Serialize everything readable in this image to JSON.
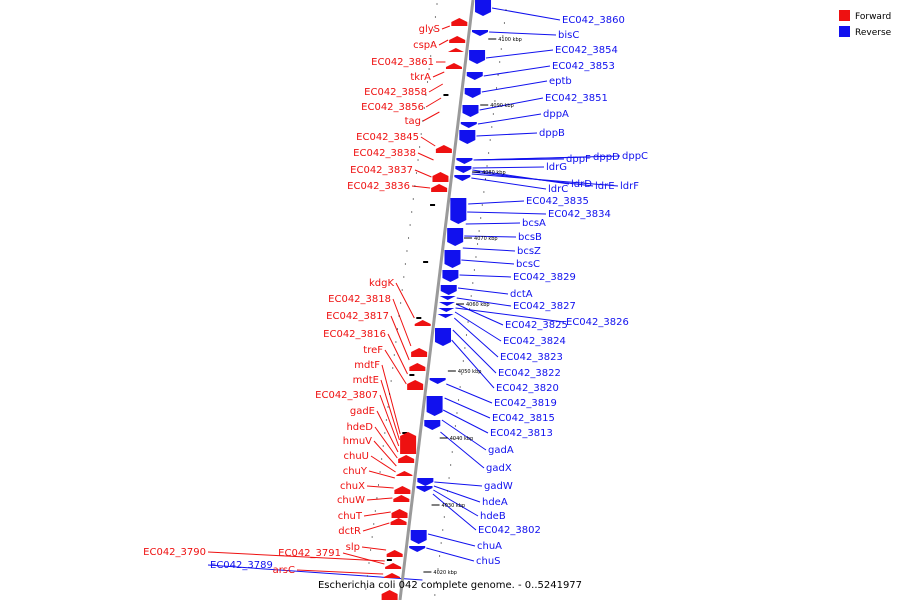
{
  "caption": "Escherichia coli 042 complete genome. - 0..5241977",
  "legend": {
    "forward": {
      "label": "Forward",
      "color": "#ee1111"
    },
    "reverse": {
      "label": "Reverse",
      "color": "#1111ee"
    }
  },
  "colors": {
    "forward": "#ee1111",
    "reverse": "#1111ee",
    "axis": "#9a9a9a"
  },
  "ticks": [
    "4100 kbp",
    "4090 kbp",
    "4080 kbp",
    "4070 kbp",
    "4060 kbp",
    "4050 kbp",
    "4040 kbp",
    "4030 kbp",
    "4020 kbp"
  ],
  "forward_genes": [
    "glyS",
    "cspA",
    "EC042_3861",
    "tkrA",
    "EC042_3858",
    "EC042_3856",
    "tag",
    "EC042_3845",
    "EC042_3838",
    "EC042_3837",
    "EC042_3836",
    "kdgK",
    "EC042_3818",
    "EC042_3817",
    "EC042_3816",
    "treF",
    "mdtF",
    "mdtE",
    "EC042_3807",
    "gadE",
    "hdeD",
    "hmuV",
    "chuU",
    "chuY",
    "chuX",
    "chuW",
    "chuT",
    "dctR",
    "slp",
    "EC042_3790",
    "EC042_3791",
    "arsC"
  ],
  "reverse_genes": [
    "EC042_3860",
    "bisC",
    "EC042_3854",
    "EC042_3853",
    "eptb",
    "EC042_3851",
    "dppA",
    "dppB",
    "dppF",
    "dppD",
    "dppC",
    "ldrG",
    "ldrD",
    "ldrE",
    "ldrF",
    "ldrC",
    "EC042_3835",
    "EC042_3834",
    "bcsA",
    "bcsB",
    "bcsZ",
    "bcsC",
    "EC042_3829",
    "dctA",
    "EC042_3827",
    "EC042_3825",
    "EC042_3826",
    "EC042_3824",
    "EC042_3823",
    "EC042_3822",
    "EC042_3820",
    "EC042_3819",
    "EC042_3815",
    "EC042_3813",
    "gadA",
    "gadX",
    "gadW",
    "hdeA",
    "hdeB",
    "EC042_3802",
    "chuA",
    "chuS",
    "EC042_3789"
  ]
}
